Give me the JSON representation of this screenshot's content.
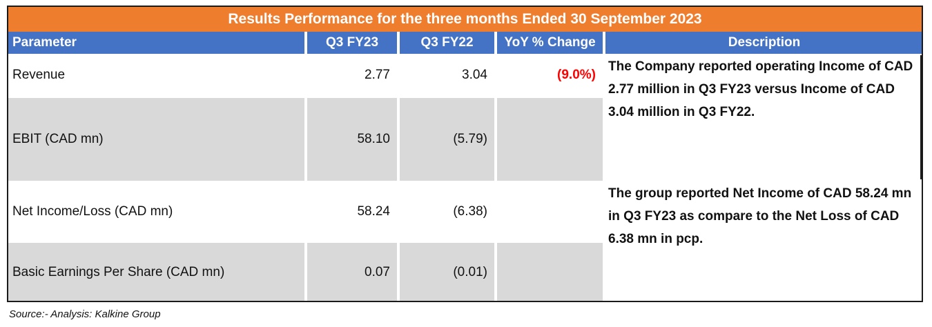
{
  "title": "Results Performance for the three months Ended 30 September 2023",
  "headers": {
    "parameter": "Parameter",
    "q3fy23": "Q3 FY23",
    "q3fy22": "Q3 FY22",
    "yoy": "YoY % Change",
    "description": "Description"
  },
  "rows": [
    {
      "parameter": "Revenue",
      "q3fy23": "2.77",
      "q3fy22": "3.04",
      "yoy": "(9.0%)"
    },
    {
      "parameter": "EBIT (CAD mn)",
      "q3fy23": "58.10",
      "q3fy22": "(5.79)",
      "yoy": ""
    },
    {
      "parameter": "Net Income/Loss (CAD mn)",
      "q3fy23": "58.24",
      "q3fy22": "(6.38)",
      "yoy": ""
    },
    {
      "parameter": "Basic Earnings Per Share (CAD mn)",
      "q3fy23": "0.07",
      "q3fy22": "(0.01)",
      "yoy": ""
    }
  ],
  "descriptions": {
    "revenue_ebit": "The Company reported operating Income of CAD 2.77 million in Q3 FY23 versus Income of CAD 3.04 million in Q3 FY22.",
    "net_income_eps": "The group reported  Net Income of CAD 58.24 mn in Q3 FY23 as compare to the Net Loss of CAD 6.38  mn in pcp."
  },
  "source": "Source:- Analysis: Kalkine Group",
  "colors": {
    "title_bg": "#ef7d2e",
    "header_bg": "#4472c4",
    "row_grey": "#d9d9d9",
    "negative": "#ff0000"
  }
}
